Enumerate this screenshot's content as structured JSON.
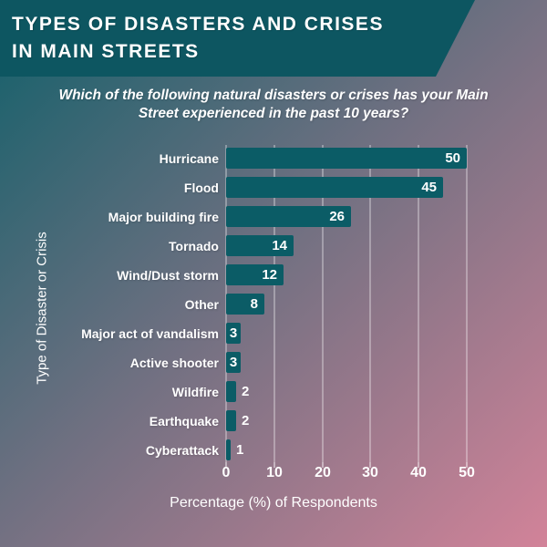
{
  "header": {
    "title_line1": "TYPES OF DISASTERS AND CRISES",
    "title_line2": "IN MAIN STREETS"
  },
  "subtitle": "Which of the following natural disasters or crises has your Main Street experienced in the past 10 years?",
  "chart_data": {
    "type": "bar",
    "orientation": "horizontal",
    "categories": [
      "Hurricane",
      "Flood",
      "Major building fire",
      "Tornado",
      "Wind/Dust storm",
      "Other",
      "Major act of vandalism",
      "Active shooter",
      "Wildfire",
      "Earthquake",
      "Cyberattack"
    ],
    "values": [
      50,
      45,
      26,
      14,
      12,
      8,
      3,
      3,
      2,
      2,
      1
    ],
    "xlabel": "Percentage (%) of Respondents",
    "ylabel": "Type of Disaster or Crisis",
    "xticks": [
      0,
      10,
      20,
      30,
      40,
      50
    ],
    "xlim": [
      0,
      50
    ],
    "grid": true,
    "legend": false,
    "value_labels": true
  },
  "colors": {
    "banner_teal": "#0d5661",
    "bar_teal": "#0b5c66",
    "text_white": "#ffffff",
    "bg_gradient_teal": "#12606a",
    "bg_gradient_slate": "#6f7081",
    "bg_gradient_pink": "#d28399"
  }
}
